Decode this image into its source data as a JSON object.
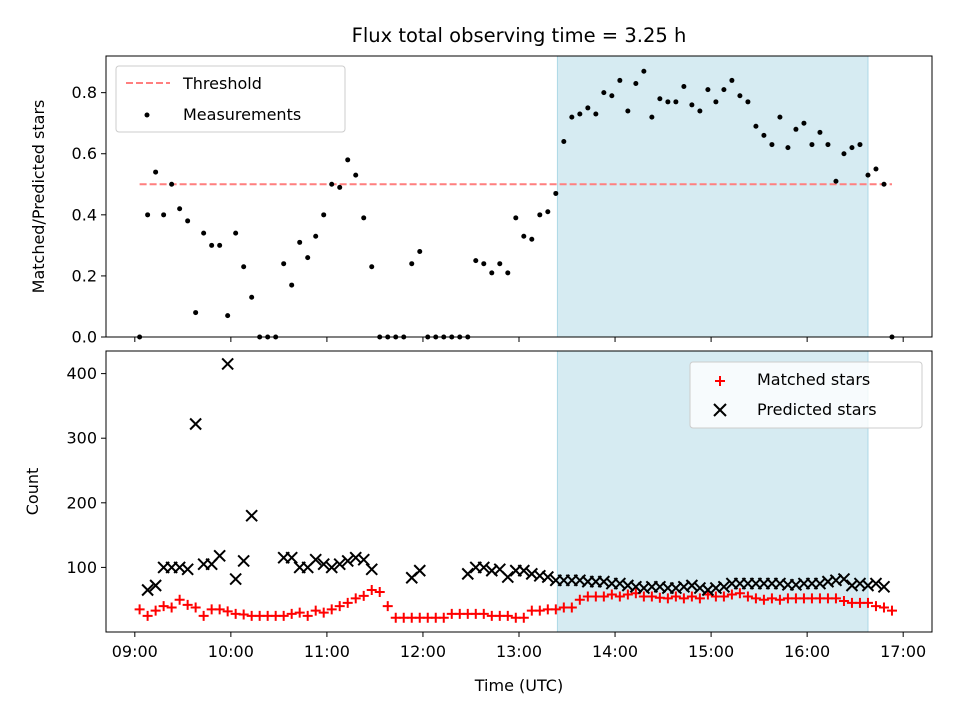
{
  "chart_data": [
    {
      "type": "scatter",
      "title": "Flux total observing time = 3.25 h",
      "xlabel": "",
      "ylabel": "Matched/Predicted stars",
      "xlim": [
        "08:42",
        "17:18"
      ],
      "ylim": [
        0.0,
        0.92
      ],
      "yticks": [
        0.0,
        0.2,
        0.4,
        0.6,
        0.8
      ],
      "ytick_labels": [
        "0.0",
        "0.2",
        "0.4",
        "0.6",
        "0.8"
      ],
      "grid": false,
      "legend": {
        "placement": "top-left",
        "entries": [
          "Threshold",
          "Measurements"
        ]
      },
      "shaded_region": {
        "x": [
          "13:24",
          "16:38"
        ],
        "color": "#add8e6"
      },
      "series": [
        {
          "name": "Threshold",
          "kind": "dashed-line",
          "color": "#ff7f7f",
          "x": [
            "09:03",
            "16:53"
          ],
          "y": [
            0.5,
            0.5
          ]
        },
        {
          "name": "Measurements",
          "kind": "points",
          "color": "#000000",
          "x": [
            "09:03",
            "09:08",
            "09:13",
            "09:18",
            "09:23",
            "09:28",
            "09:33",
            "09:38",
            "09:43",
            "09:48",
            "09:53",
            "09:58",
            "10:03",
            "10:08",
            "10:13",
            "10:18",
            "10:23",
            "10:28",
            "10:33",
            "10:38",
            "10:43",
            "10:48",
            "10:53",
            "10:58",
            "11:03",
            "11:08",
            "11:13",
            "11:18",
            "11:23",
            "11:28",
            "11:33",
            "11:38",
            "11:43",
            "11:48",
            "11:53",
            "11:58",
            "12:03",
            "12:08",
            "12:13",
            "12:18",
            "12:23",
            "12:28",
            "12:33",
            "12:38",
            "12:43",
            "12:48",
            "12:53",
            "12:58",
            "13:03",
            "13:08",
            "13:13",
            "13:18",
            "13:23",
            "13:28",
            "13:33",
            "13:38",
            "13:43",
            "13:48",
            "13:53",
            "13:58",
            "14:03",
            "14:08",
            "14:13",
            "14:18",
            "14:23",
            "14:28",
            "14:33",
            "14:38",
            "14:43",
            "14:48",
            "14:53",
            "14:58",
            "15:03",
            "15:08",
            "15:13",
            "15:18",
            "15:23",
            "15:28",
            "15:33",
            "15:38",
            "15:43",
            "15:48",
            "15:53",
            "15:58",
            "16:03",
            "16:08",
            "16:13",
            "16:18",
            "16:23",
            "16:28",
            "16:33",
            "16:38",
            "16:43",
            "16:48",
            "16:53"
          ],
          "y": [
            0.0,
            0.4,
            0.54,
            0.4,
            0.5,
            0.42,
            0.38,
            0.08,
            0.34,
            0.3,
            0.3,
            0.07,
            0.34,
            0.23,
            0.13,
            0.0,
            0.0,
            0.0,
            0.24,
            0.17,
            0.31,
            0.26,
            0.33,
            0.4,
            0.5,
            0.49,
            0.58,
            0.53,
            0.39,
            0.23,
            0.0,
            0.0,
            0.0,
            0.0,
            0.24,
            0.28,
            0.0,
            0.0,
            0.0,
            0.0,
            0.0,
            0.0,
            0.25,
            0.24,
            0.21,
            0.24,
            0.21,
            0.39,
            0.33,
            0.32,
            0.4,
            0.41,
            0.47,
            0.64,
            0.72,
            0.73,
            0.75,
            0.73,
            0.8,
            0.79,
            0.84,
            0.74,
            0.83,
            0.87,
            0.72,
            0.78,
            0.77,
            0.77,
            0.82,
            0.76,
            0.74,
            0.81,
            0.77,
            0.81,
            0.84,
            0.79,
            0.77,
            0.69,
            0.66,
            0.63,
            0.72,
            0.62,
            0.68,
            0.7,
            0.63,
            0.67,
            0.63,
            0.51,
            0.6,
            0.62,
            0.63,
            0.53,
            0.55,
            0.5,
            0.0
          ]
        }
      ]
    },
    {
      "type": "scatter",
      "title": "",
      "xlabel": "Time (UTC)",
      "ylabel": "Count",
      "xlim": [
        "08:42",
        "17:18"
      ],
      "ylim": [
        0,
        435
      ],
      "yticks": [
        100,
        200,
        300,
        400
      ],
      "ytick_labels": [
        "100",
        "200",
        "300",
        "400"
      ],
      "xticks": [
        "09:00",
        "10:00",
        "11:00",
        "12:00",
        "13:00",
        "14:00",
        "15:00",
        "16:00",
        "17:00"
      ],
      "xtick_labels": [
        "09:00",
        "10:00",
        "11:00",
        "12:00",
        "13:00",
        "14:00",
        "15:00",
        "16:00",
        "17:00"
      ],
      "grid": false,
      "legend": {
        "placement": "top-right",
        "entries": [
          "Matched stars",
          "Predicted stars"
        ]
      },
      "shaded_region": {
        "x": [
          "13:24",
          "16:38"
        ],
        "color": "#add8e6"
      },
      "series": [
        {
          "name": "Matched stars",
          "kind": "plus",
          "color": "#ff0000",
          "x": [
            "09:03",
            "09:08",
            "09:13",
            "09:18",
            "09:23",
            "09:28",
            "09:33",
            "09:38",
            "09:43",
            "09:48",
            "09:53",
            "09:58",
            "10:03",
            "10:08",
            "10:13",
            "10:18",
            "10:23",
            "10:28",
            "10:33",
            "10:38",
            "10:43",
            "10:48",
            "10:53",
            "10:58",
            "11:03",
            "11:08",
            "11:13",
            "11:18",
            "11:23",
            "11:28",
            "11:33",
            "11:38",
            "11:43",
            "11:48",
            "11:53",
            "11:58",
            "12:03",
            "12:08",
            "12:13",
            "12:18",
            "12:23",
            "12:28",
            "12:33",
            "12:38",
            "12:43",
            "12:48",
            "12:53",
            "12:58",
            "13:03",
            "13:08",
            "13:13",
            "13:18",
            "13:23",
            "13:28",
            "13:33",
            "13:38",
            "13:43",
            "13:48",
            "13:53",
            "13:58",
            "14:03",
            "14:08",
            "14:13",
            "14:18",
            "14:23",
            "14:28",
            "14:33",
            "14:38",
            "14:43",
            "14:48",
            "14:53",
            "14:58",
            "15:03",
            "15:08",
            "15:13",
            "15:18",
            "15:23",
            "15:28",
            "15:33",
            "15:38",
            "15:43",
            "15:48",
            "15:53",
            "15:58",
            "16:03",
            "16:08",
            "16:13",
            "16:18",
            "16:23",
            "16:28",
            "16:33",
            "16:38",
            "16:43",
            "16:48",
            "16:53"
          ],
          "y": [
            35,
            25,
            33,
            40,
            38,
            50,
            42,
            38,
            25,
            35,
            35,
            32,
            28,
            27,
            25,
            25,
            25,
            25,
            25,
            28,
            30,
            25,
            33,
            30,
            35,
            40,
            45,
            52,
            56,
            65,
            62,
            40,
            22,
            22,
            22,
            22,
            22,
            22,
            22,
            28,
            28,
            28,
            28,
            28,
            25,
            25,
            25,
            22,
            22,
            33,
            33,
            35,
            35,
            38,
            38,
            50,
            55,
            55,
            55,
            58,
            55,
            58,
            60,
            55,
            55,
            53,
            52,
            55,
            52,
            55,
            52,
            58,
            55,
            55,
            58,
            60,
            55,
            52,
            50,
            52,
            50,
            52,
            52,
            52,
            52,
            52,
            52,
            52,
            48,
            45,
            45,
            45,
            40,
            38,
            33
          ]
        },
        {
          "name": "Predicted stars",
          "kind": "x",
          "color": "#000000",
          "x": [
            "09:08",
            "09:13",
            "09:18",
            "09:23",
            "09:28",
            "09:33",
            "09:38",
            "09:43",
            "09:48",
            "09:53",
            "09:58",
            "10:03",
            "10:08",
            "10:13",
            "10:33",
            "10:38",
            "10:43",
            "10:48",
            "10:53",
            "10:58",
            "11:03",
            "11:08",
            "11:13",
            "11:18",
            "11:23",
            "11:28",
            "11:53",
            "11:58",
            "12:28",
            "12:33",
            "12:38",
            "12:43",
            "12:48",
            "12:53",
            "12:58",
            "13:03",
            "13:08",
            "13:13",
            "13:18",
            "13:23",
            "13:28",
            "13:33",
            "13:38",
            "13:43",
            "13:48",
            "13:53",
            "13:58",
            "14:03",
            "14:08",
            "14:13",
            "14:18",
            "14:23",
            "14:28",
            "14:33",
            "14:38",
            "14:43",
            "14:48",
            "14:53",
            "14:58",
            "15:03",
            "15:08",
            "15:13",
            "15:18",
            "15:23",
            "15:28",
            "15:33",
            "15:38",
            "15:43",
            "15:48",
            "15:53",
            "15:58",
            "16:03",
            "16:08",
            "16:13",
            "16:18",
            "16:23",
            "16:28",
            "16:33",
            "16:38",
            "16:43",
            "16:48"
          ],
          "y": [
            65,
            72,
            100,
            100,
            100,
            97,
            322,
            105,
            105,
            118,
            415,
            82,
            110,
            180,
            115,
            115,
            100,
            100,
            112,
            105,
            100,
            105,
            110,
            115,
            112,
            97,
            84,
            95,
            90,
            100,
            100,
            95,
            97,
            85,
            95,
            95,
            90,
            87,
            85,
            80,
            80,
            80,
            80,
            78,
            78,
            78,
            75,
            75,
            72,
            70,
            68,
            70,
            70,
            68,
            68,
            70,
            72,
            68,
            65,
            68,
            70,
            75,
            75,
            75,
            75,
            75,
            75,
            75,
            73,
            73,
            75,
            75,
            75,
            78,
            80,
            82,
            72,
            75,
            72,
            75,
            70
          ]
        }
      ]
    }
  ]
}
